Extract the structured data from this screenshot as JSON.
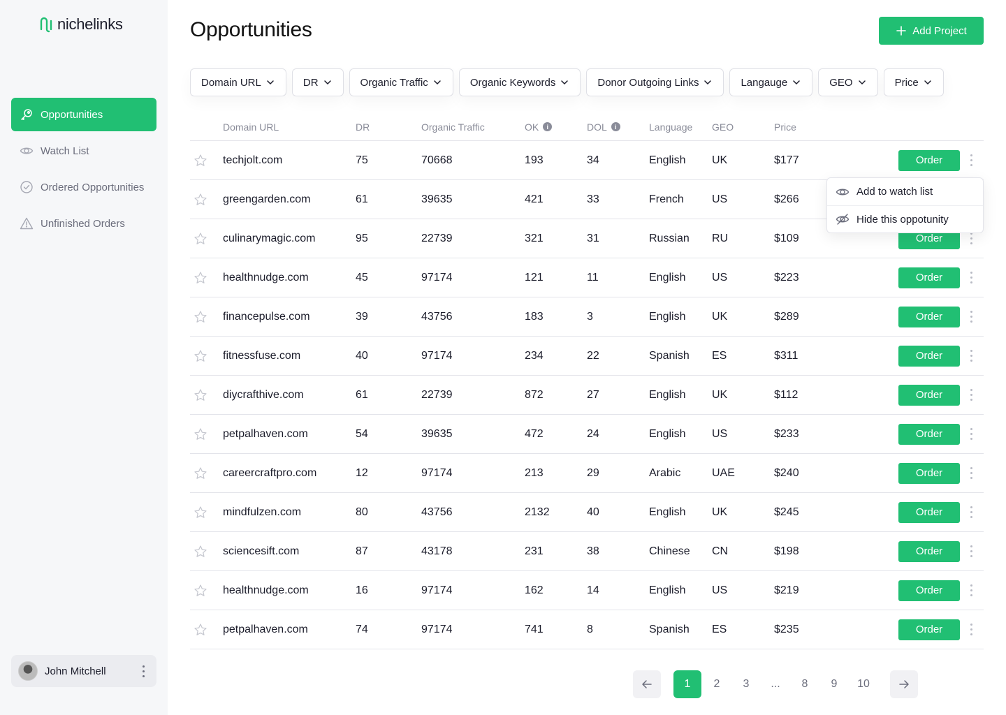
{
  "brand": {
    "name": "nichelinks",
    "accent": "#21bf73"
  },
  "sidebar": {
    "items": [
      {
        "label": "Opportunities",
        "icon": "key-icon",
        "active": true
      },
      {
        "label": "Watch List",
        "icon": "eye-icon",
        "active": false
      },
      {
        "label": "Ordered Opportunities",
        "icon": "check-circle-icon",
        "active": false
      },
      {
        "label": "Unfinished Orders",
        "icon": "warning-icon",
        "active": false
      }
    ],
    "user": {
      "name": "John Mitchell"
    }
  },
  "header": {
    "title": "Opportunities",
    "add_label": "Add Project"
  },
  "filters": [
    "Domain URL",
    "DR",
    "Organic Traffic",
    "Organic Keywords",
    "Donor Outgoing Links",
    "Langauge",
    "GEO",
    "Price"
  ],
  "table": {
    "columns": {
      "domain": "Domain URL",
      "dr": "DR",
      "traffic": "Organic Traffic",
      "ok": "OK",
      "dol": "DOL",
      "lang": "Language",
      "geo": "GEO",
      "price": "Price"
    },
    "order_label": "Order",
    "rows": [
      {
        "domain": "techjolt.com",
        "dr": "75",
        "traffic": "70668",
        "ok": "193",
        "dol": "34",
        "lang": "English",
        "geo": "UK",
        "price": "$177"
      },
      {
        "domain": "greengarden.com",
        "dr": "61",
        "traffic": "39635",
        "ok": "421",
        "dol": "33",
        "lang": "French",
        "geo": "US",
        "price": "$266"
      },
      {
        "domain": "culinarymagic.com",
        "dr": "95",
        "traffic": "22739",
        "ok": "321",
        "dol": "31",
        "lang": "Russian",
        "geo": "RU",
        "price": "$109"
      },
      {
        "domain": "healthnudge.com",
        "dr": "45",
        "traffic": "97174",
        "ok": "121",
        "dol": "11",
        "lang": "English",
        "geo": "US",
        "price": "$223"
      },
      {
        "domain": "financepulse.com",
        "dr": "39",
        "traffic": "43756",
        "ok": "183",
        "dol": "3",
        "lang": "English",
        "geo": "UK",
        "price": "$289"
      },
      {
        "domain": "fitnessfuse.com",
        "dr": "40",
        "traffic": "97174",
        "ok": "234",
        "dol": "22",
        "lang": "Spanish",
        "geo": "ES",
        "price": "$311"
      },
      {
        "domain": "diycrafthive.com",
        "dr": "61",
        "traffic": "22739",
        "ok": "872",
        "dol": "27",
        "lang": "English",
        "geo": "UK",
        "price": "$112"
      },
      {
        "domain": "petpalhaven.com",
        "dr": "54",
        "traffic": "39635",
        "ok": "472",
        "dol": "24",
        "lang": "English",
        "geo": "US",
        "price": "$233"
      },
      {
        "domain": "careercraftpro.com",
        "dr": "12",
        "traffic": "97174",
        "ok": "213",
        "dol": "29",
        "lang": "Arabic",
        "geo": "UAE",
        "price": "$240"
      },
      {
        "domain": "mindfulzen.com",
        "dr": "80",
        "traffic": "43756",
        "ok": "2132",
        "dol": "40",
        "lang": "English",
        "geo": "UK",
        "price": "$245"
      },
      {
        "domain": "sciencesift.com",
        "dr": "87",
        "traffic": "43178",
        "ok": "231",
        "dol": "38",
        "lang": "Chinese",
        "geo": "CN",
        "price": "$198"
      },
      {
        "domain": "healthnudge.com",
        "dr": "16",
        "traffic": "97174",
        "ok": "162",
        "dol": "14",
        "lang": "English",
        "geo": "US",
        "price": "$219"
      },
      {
        "domain": "petpalhaven.com",
        "dr": "74",
        "traffic": "97174",
        "ok": "741",
        "dol": "8",
        "lang": "Spanish",
        "geo": "ES",
        "price": "$235"
      }
    ]
  },
  "context_menu": {
    "items": [
      {
        "label": "Add to watch list",
        "icon": "eye-icon"
      },
      {
        "label": "Hide this oppotunity",
        "icon": "eye-off-icon"
      }
    ]
  },
  "pagination": {
    "pages": [
      "1",
      "2",
      "3",
      "...",
      "8",
      "9",
      "10"
    ],
    "current": "1"
  }
}
